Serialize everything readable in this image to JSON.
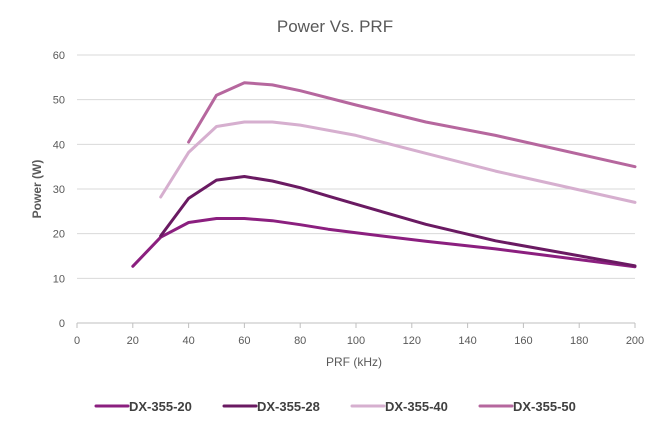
{
  "chart_data": {
    "type": "line",
    "title": "Power Vs. PRF",
    "xlabel": "PRF (kHz)",
    "ylabel": "Power (W)",
    "xlim": [
      0,
      200
    ],
    "ylim": [
      0,
      60
    ],
    "xticks": [
      0,
      20,
      40,
      60,
      80,
      100,
      120,
      140,
      160,
      180,
      200
    ],
    "yticks": [
      0,
      10,
      20,
      30,
      40,
      50,
      60
    ],
    "grid": "horizontal",
    "legend_position": "bottom",
    "series": [
      {
        "name": "DX-355-20",
        "color": "#8b1f7f",
        "x": [
          20,
          30,
          40,
          50,
          60,
          70,
          80,
          90,
          100,
          125,
          150,
          200
        ],
        "y": [
          12.7,
          19.2,
          22.5,
          23.4,
          23.4,
          22.9,
          22.0,
          21.0,
          20.2,
          18.3,
          16.6,
          12.6
        ]
      },
      {
        "name": "DX-355-28",
        "color": "#6a1a62",
        "x": [
          30,
          40,
          50,
          60,
          70,
          80,
          90,
          100,
          125,
          150,
          200
        ],
        "y": [
          19.5,
          27.9,
          32.0,
          32.8,
          31.8,
          30.3,
          28.4,
          26.6,
          22.1,
          18.4,
          12.8
        ]
      },
      {
        "name": "DX-355-40",
        "color": "#d6afcf",
        "x": [
          30,
          40,
          50,
          60,
          70,
          80,
          100,
          125,
          150,
          200
        ],
        "y": [
          28.2,
          38.2,
          44.0,
          45.0,
          45.0,
          44.3,
          42.0,
          38.0,
          34.0,
          27.0
        ]
      },
      {
        "name": "DX-355-50",
        "color": "#b6679e",
        "x": [
          40,
          50,
          60,
          70,
          80,
          100,
          125,
          150,
          200
        ],
        "y": [
          40.5,
          51.0,
          53.8,
          53.3,
          52.0,
          48.8,
          45.0,
          42.0,
          35.0
        ]
      }
    ]
  }
}
